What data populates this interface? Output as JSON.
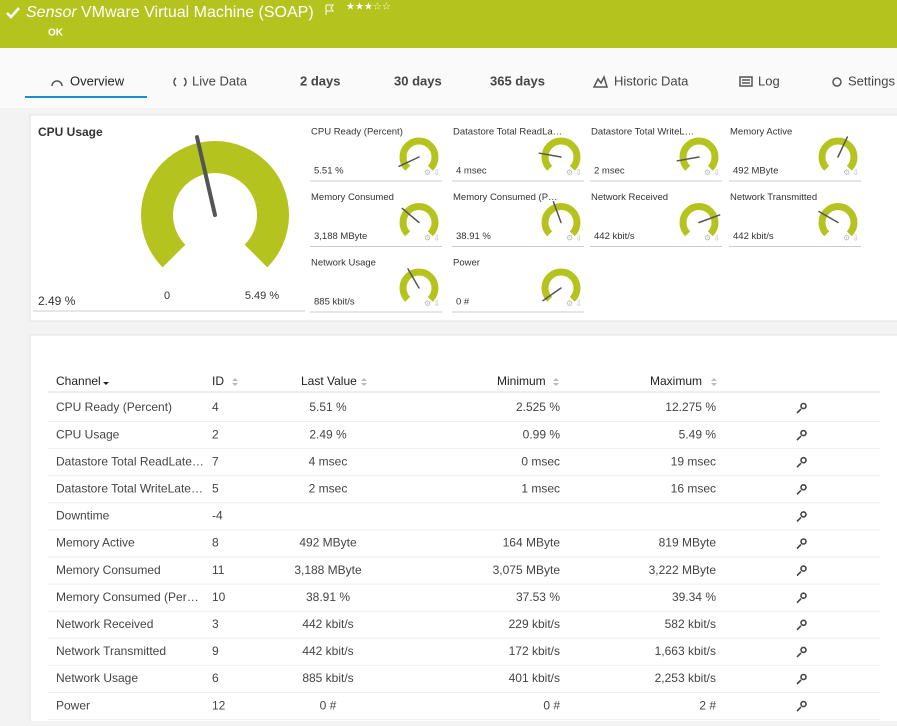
{
  "header": {
    "prefix": "Sensor",
    "title": "VMware Virtual Machine (SOAP)",
    "status": "OK"
  },
  "tabs": [
    "Overview",
    "Live Data",
    "2 days",
    "30 days",
    "365 days",
    "Historic Data",
    "Log",
    "Settings"
  ],
  "main_gauge": {
    "name": "CPU Usage",
    "value": "2.49 %",
    "min": "0",
    "max": "5.49 %"
  },
  "gauges": [
    {
      "name": "CPU Ready (Percent)",
      "value": "5.51 %"
    },
    {
      "name": "Datastore Total ReadLa…",
      "value": "4 msec"
    },
    {
      "name": "Datastore Total WriteL…",
      "value": "2 msec"
    },
    {
      "name": "Memory Active",
      "value": "492 MByte"
    },
    {
      "name": "Memory Consumed",
      "value": "3,188 MByte"
    },
    {
      "name": "Memory Consumed (P…",
      "value": "38.91 %"
    },
    {
      "name": "Network Received",
      "value": "442 kbit/s"
    },
    {
      "name": "Network Transmitted",
      "value": "442 kbit/s"
    },
    {
      "name": "Network Usage",
      "value": "885 kbit/s"
    },
    {
      "name": "Power",
      "value": "0 #"
    }
  ],
  "table": {
    "columns": [
      "Channel",
      "ID",
      "Last Value",
      "Minimum",
      "Maximum"
    ],
    "rows": [
      [
        "CPU Ready (Percent)",
        4,
        "5.51 %",
        "2.525 %",
        "12.275 %"
      ],
      [
        "CPU Usage",
        2,
        "2.49 %",
        "0.99 %",
        "5.49 %"
      ],
      [
        "Datastore Total ReadLate…",
        7,
        "4 msec",
        "0 msec",
        "19 msec"
      ],
      [
        "Datastore Total WriteLate…",
        5,
        "2 msec",
        "1 msec",
        "16 msec"
      ],
      [
        "Downtime",
        -4
      ],
      [
        "Memory Active",
        8,
        "492 MByte",
        "164 MByte",
        "819 MByte"
      ],
      [
        "Memory Consumed",
        11,
        "3,188 MByte",
        "3,075 MByte",
        "3,222 MByte"
      ],
      [
        "Memory Consumed (Per…",
        10,
        "38.91 %",
        "37.53 %",
        "39.34 %"
      ],
      [
        "Network Received",
        3,
        "442 kbit/s",
        "229 kbit/s",
        "582 kbit/s"
      ],
      [
        "Network Transmitted",
        9,
        "442 kbit/s",
        "172 kbit/s",
        "1,663 kbit/s"
      ],
      [
        "Network Usage",
        6,
        "885 kbit/s",
        "401 kbit/s",
        "2,253 kbit/s"
      ],
      [
        "Power",
        12,
        "0 #",
        "0 #",
        "2 #"
      ]
    ]
  }
}
